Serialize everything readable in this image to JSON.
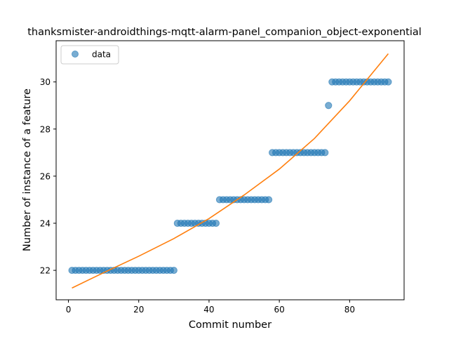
{
  "chart_data": {
    "type": "scatter",
    "title": "thanksmister-androidthings-mqtt-alarm-panel_companion_object-exponential",
    "xlabel": "Commit number",
    "ylabel": "Number of instance of a feature",
    "xlim": [
      -3.5,
      95.5
    ],
    "ylim": [
      20.75,
      31.75
    ],
    "x_ticks": [
      0,
      20,
      40,
      60,
      80
    ],
    "y_ticks": [
      22,
      24,
      26,
      28,
      30
    ],
    "legend": {
      "position": "top-left",
      "entries": [
        "data"
      ]
    },
    "grid": false,
    "colors": {
      "data": "#1f77b4",
      "fit": "#ff7f0e"
    },
    "series": [
      {
        "name": "data",
        "kind": "scatter",
        "points": [
          [
            1,
            22
          ],
          [
            2,
            22
          ],
          [
            3,
            22
          ],
          [
            4,
            22
          ],
          [
            5,
            22
          ],
          [
            6,
            22
          ],
          [
            7,
            22
          ],
          [
            8,
            22
          ],
          [
            9,
            22
          ],
          [
            10,
            22
          ],
          [
            11,
            22
          ],
          [
            12,
            22
          ],
          [
            13,
            22
          ],
          [
            14,
            22
          ],
          [
            15,
            22
          ],
          [
            16,
            22
          ],
          [
            17,
            22
          ],
          [
            18,
            22
          ],
          [
            19,
            22
          ],
          [
            20,
            22
          ],
          [
            21,
            22
          ],
          [
            22,
            22
          ],
          [
            23,
            22
          ],
          [
            24,
            22
          ],
          [
            25,
            22
          ],
          [
            26,
            22
          ],
          [
            27,
            22
          ],
          [
            28,
            22
          ],
          [
            29,
            22
          ],
          [
            30,
            22
          ],
          [
            31,
            24
          ],
          [
            32,
            24
          ],
          [
            33,
            24
          ],
          [
            34,
            24
          ],
          [
            35,
            24
          ],
          [
            36,
            24
          ],
          [
            37,
            24
          ],
          [
            38,
            24
          ],
          [
            39,
            24
          ],
          [
            40,
            24
          ],
          [
            41,
            24
          ],
          [
            42,
            24
          ],
          [
            43,
            25
          ],
          [
            44,
            25
          ],
          [
            45,
            25
          ],
          [
            46,
            25
          ],
          [
            47,
            25
          ],
          [
            48,
            25
          ],
          [
            49,
            25
          ],
          [
            50,
            25
          ],
          [
            51,
            25
          ],
          [
            52,
            25
          ],
          [
            53,
            25
          ],
          [
            54,
            25
          ],
          [
            55,
            25
          ],
          [
            56,
            25
          ],
          [
            57,
            25
          ],
          [
            58,
            27
          ],
          [
            59,
            27
          ],
          [
            60,
            27
          ],
          [
            61,
            27
          ],
          [
            62,
            27
          ],
          [
            63,
            27
          ],
          [
            64,
            27
          ],
          [
            65,
            27
          ],
          [
            66,
            27
          ],
          [
            67,
            27
          ],
          [
            68,
            27
          ],
          [
            69,
            27
          ],
          [
            70,
            27
          ],
          [
            71,
            27
          ],
          [
            72,
            27
          ],
          [
            73,
            27
          ],
          [
            74,
            29
          ],
          [
            75,
            30
          ],
          [
            76,
            30
          ],
          [
            77,
            30
          ],
          [
            78,
            30
          ],
          [
            79,
            30
          ],
          [
            80,
            30
          ],
          [
            81,
            30
          ],
          [
            82,
            30
          ],
          [
            83,
            30
          ],
          [
            84,
            30
          ],
          [
            85,
            30
          ],
          [
            86,
            30
          ],
          [
            87,
            30
          ],
          [
            88,
            30
          ],
          [
            89,
            30
          ],
          [
            90,
            30
          ],
          [
            91,
            30
          ]
        ]
      },
      {
        "kind": "line",
        "points": [
          [
            1,
            21.25
          ],
          [
            10,
            21.9
          ],
          [
            20,
            22.6
          ],
          [
            30,
            23.35
          ],
          [
            40,
            24.2
          ],
          [
            50,
            25.2
          ],
          [
            60,
            26.3
          ],
          [
            70,
            27.6
          ],
          [
            80,
            29.2
          ],
          [
            91,
            31.2
          ]
        ]
      }
    ]
  }
}
